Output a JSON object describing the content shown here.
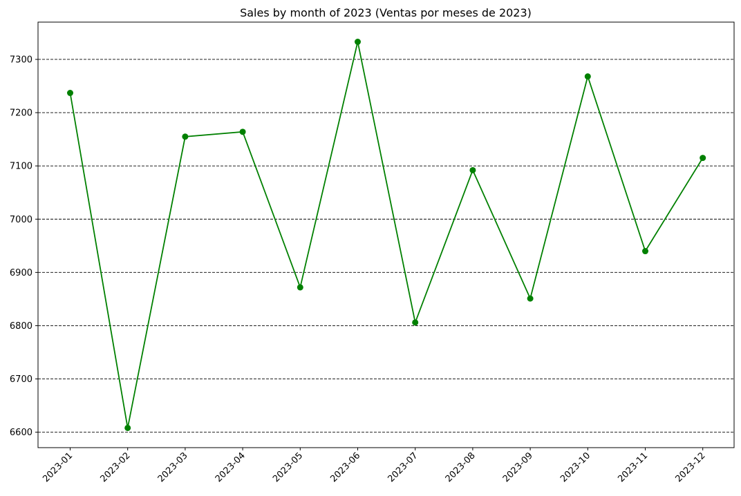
{
  "chart_data": {
    "type": "line",
    "title": "Sales by month of 2023 (Ventas por meses de 2023)",
    "xlabel": "",
    "ylabel": "",
    "categories": [
      "2023-01",
      "2023-02",
      "2023-03",
      "2023-04",
      "2023-05",
      "2023-06",
      "2023-07",
      "2023-08",
      "2023-09",
      "2023-10",
      "2023-11",
      "2023-12"
    ],
    "series": [
      {
        "values": [
          7237,
          6608,
          7155,
          7164,
          6872,
          7333,
          6806,
          7092,
          6851,
          7268,
          6940,
          7115
        ],
        "color": "#008000",
        "marker": "circle"
      }
    ],
    "yticks": [
      6600,
      6700,
      6800,
      6900,
      7000,
      7100,
      7200,
      7300
    ],
    "ylim": [
      6571,
      7370
    ],
    "grid": "y-dashed",
    "x_tick_rotation": 45
  }
}
